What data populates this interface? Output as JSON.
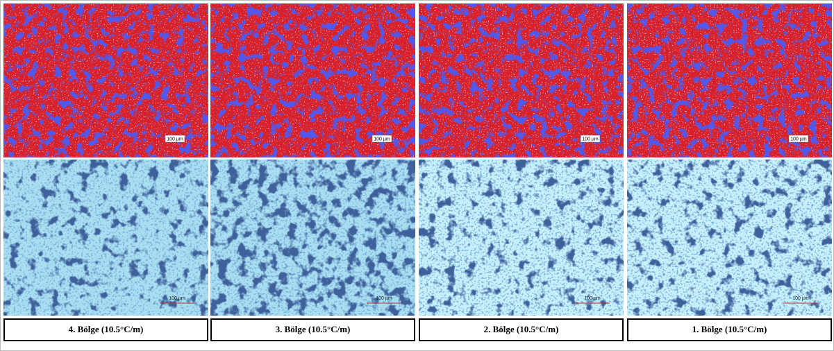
{
  "panels": [
    {
      "caption": "4. Bölge (10.5°C/m)",
      "top_scale": "100 µm",
      "bottom_scale": "100 µm"
    },
    {
      "caption": "3. Bölge (10.5°C/m)",
      "top_scale": "100 µm",
      "bottom_scale": "100 µm"
    },
    {
      "caption": "2. Bölge  (10.5°C/m)",
      "top_scale": "100 µm",
      "bottom_scale": "100 µm"
    },
    {
      "caption": "1. Bölge (10.5°C/m)",
      "top_scale": "100 µm",
      "bottom_scale": "100 µm"
    }
  ]
}
